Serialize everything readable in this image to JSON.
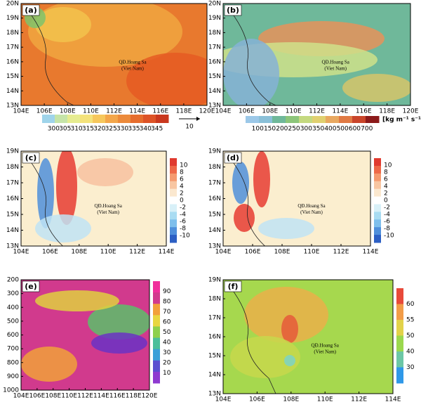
{
  "panels": [
    {
      "label": "(a)",
      "x_ticks": [
        "104E",
        "106E",
        "108E",
        "110E",
        "112E",
        "114E",
        "116E",
        "118E",
        "120E"
      ],
      "y_ticks": [
        "13N",
        "14N",
        "15N",
        "16N",
        "17N",
        "18N",
        "19N",
        "20N"
      ],
      "colorbar": [
        300,
        305,
        310,
        315,
        320,
        325,
        330,
        335,
        340,
        345
      ],
      "vector_ref": "10",
      "annotation": [
        "QĐ.Hoang Sa",
        "(Viet Nam)"
      ]
    },
    {
      "label": "(b)",
      "x_ticks": [
        "104E",
        "106E",
        "108E",
        "110E",
        "112E",
        "114E",
        "116E",
        "118E",
        "120E"
      ],
      "y_ticks": [
        "13N",
        "14N",
        "15N",
        "16N",
        "17N",
        "18N",
        "19N",
        "20N"
      ],
      "colorbar": [
        100,
        150,
        200,
        250,
        300,
        350,
        400,
        500,
        600,
        700
      ],
      "colorbar_unit": "[kg m⁻¹ s⁻¹]",
      "annotation": [
        "QĐ.Hoang Sa",
        "(Viet Nam)"
      ]
    },
    {
      "label": "(c)",
      "x_ticks": [
        "104E",
        "106E",
        "108E",
        "110E",
        "112E",
        "114E"
      ],
      "y_ticks": [
        "13N",
        "14N",
        "15N",
        "16N",
        "17N",
        "18N",
        "19N"
      ],
      "colorbar": [
        10,
        8,
        6,
        4,
        2,
        0,
        -2,
        -4,
        -6,
        -8,
        -10
      ],
      "annotation": [
        "QĐ.Hoang Sa",
        "(Viet Nam)"
      ]
    },
    {
      "label": "(d)",
      "x_ticks": [
        "104E",
        "106E",
        "108E",
        "110E",
        "112E",
        "114E"
      ],
      "y_ticks": [
        "13N",
        "14N",
        "15N",
        "16N",
        "17N",
        "18N",
        "19N"
      ],
      "colorbar": [
        10,
        8,
        6,
        4,
        2,
        0,
        -2,
        -4,
        -6,
        -8,
        -10
      ],
      "annotation": [
        "QĐ.Hoang Sa",
        "(Viet Nam)"
      ]
    },
    {
      "label": "(e)",
      "x_ticks": [
        "104E",
        "106E",
        "108E",
        "110E",
        "112E",
        "114E",
        "116E",
        "118E",
        "120E"
      ],
      "y_ticks": [
        200,
        300,
        400,
        500,
        600,
        700,
        800,
        900,
        1000
      ],
      "colorbar": [
        90,
        80,
        70,
        60,
        50,
        40,
        30,
        20,
        10
      ]
    },
    {
      "label": "(f)",
      "x_ticks": [
        "104E",
        "106E",
        "108E",
        "110E",
        "112E",
        "114E"
      ],
      "y_ticks": [
        "13N",
        "14N",
        "15N",
        "16N",
        "17N",
        "18N",
        "19N"
      ],
      "colorbar": [
        60,
        55,
        50,
        40,
        30
      ],
      "annotation": [
        "QĐ.Hoang Sa",
        "(Viet Nam)"
      ]
    }
  ]
}
